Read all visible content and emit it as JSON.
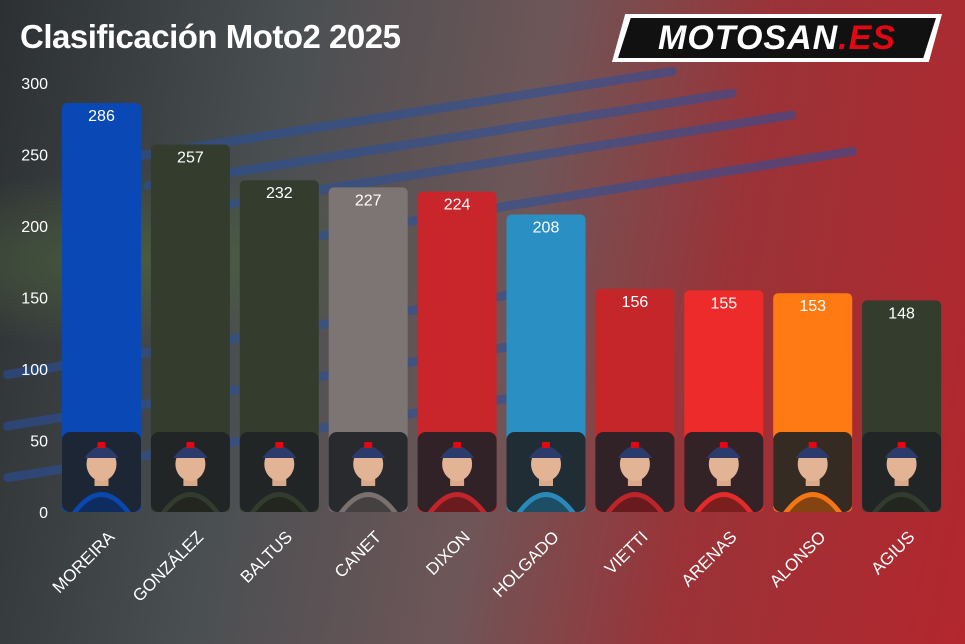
{
  "header": {
    "title": "Clasificación Moto2 2025"
  },
  "logo": {
    "text_main": "MOTOSAN",
    "text_suffix": ".ES"
  },
  "chart_data": {
    "type": "bar",
    "title": "Clasificación Moto2 2025",
    "xlabel": "",
    "ylabel": "",
    "ylim": [
      0,
      300
    ],
    "yticks": [
      0,
      50,
      100,
      150,
      200,
      250,
      300
    ],
    "grid": false,
    "categories": [
      "MOREIRA",
      "GONZÁLEZ",
      "BALTUS",
      "CANET",
      "DIXON",
      "HOLGADO",
      "VIETTI",
      "ARENAS",
      "ALONSO",
      "AGIUS"
    ],
    "values": [
      286,
      257,
      232,
      227,
      224,
      208,
      156,
      155,
      153,
      148
    ],
    "colors": [
      "#0a49b5",
      "#343c2d",
      "#343c2d",
      "#7c7574",
      "#c9262b",
      "#2a8fc2",
      "#c5262a",
      "#ee2b2b",
      "#ff7a12",
      "#343c2d"
    ],
    "data_labels": [
      "286",
      "257",
      "232",
      "227",
      "224",
      "208",
      "156",
      "155",
      "153",
      "148"
    ],
    "annotations": [
      "rider-portrait"
    ]
  }
}
